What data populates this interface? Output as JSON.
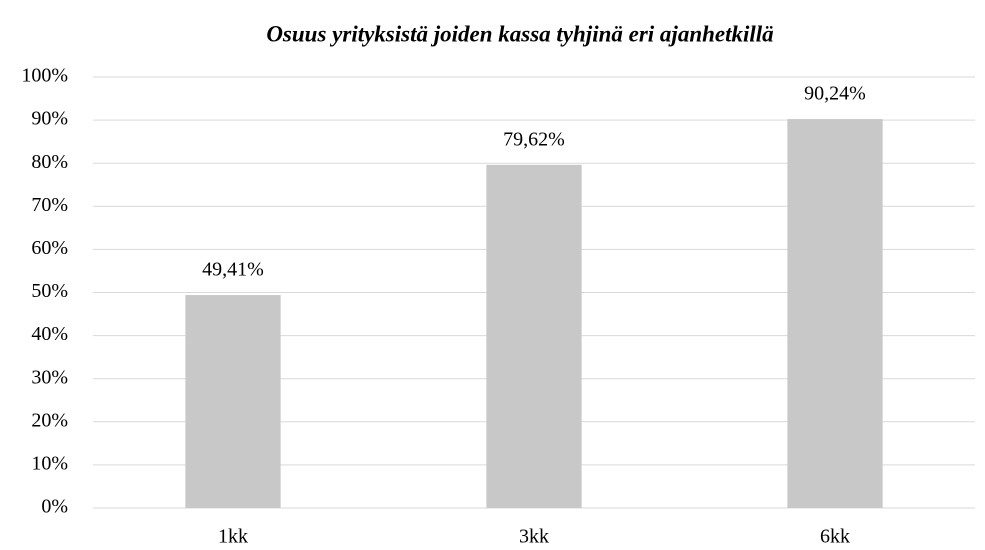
{
  "chart_data": {
    "type": "bar",
    "title": "Osuus yrityksistä joiden kassa tyhjinä eri ajanhetkillä",
    "categories": [
      "1kk",
      "3kk",
      "6kk"
    ],
    "values": [
      49.41,
      79.62,
      90.24
    ],
    "value_labels": [
      "49,41%",
      "79,62%",
      "90,24%"
    ],
    "color": "#c8c8c8",
    "ylim": [
      0,
      100
    ],
    "yticks": [
      {
        "value": 0,
        "label": "0%"
      },
      {
        "value": 10,
        "label": "10%"
      },
      {
        "value": 20,
        "label": "20%"
      },
      {
        "value": 30,
        "label": "30%"
      },
      {
        "value": 40,
        "label": "40%"
      },
      {
        "value": 50,
        "label": "50%"
      },
      {
        "value": 60,
        "label": "60%"
      },
      {
        "value": 70,
        "label": "70%"
      },
      {
        "value": 80,
        "label": "80%"
      },
      {
        "value": 90,
        "label": "90%"
      },
      {
        "value": 100,
        "label": "100%"
      }
    ],
    "grid": true
  }
}
